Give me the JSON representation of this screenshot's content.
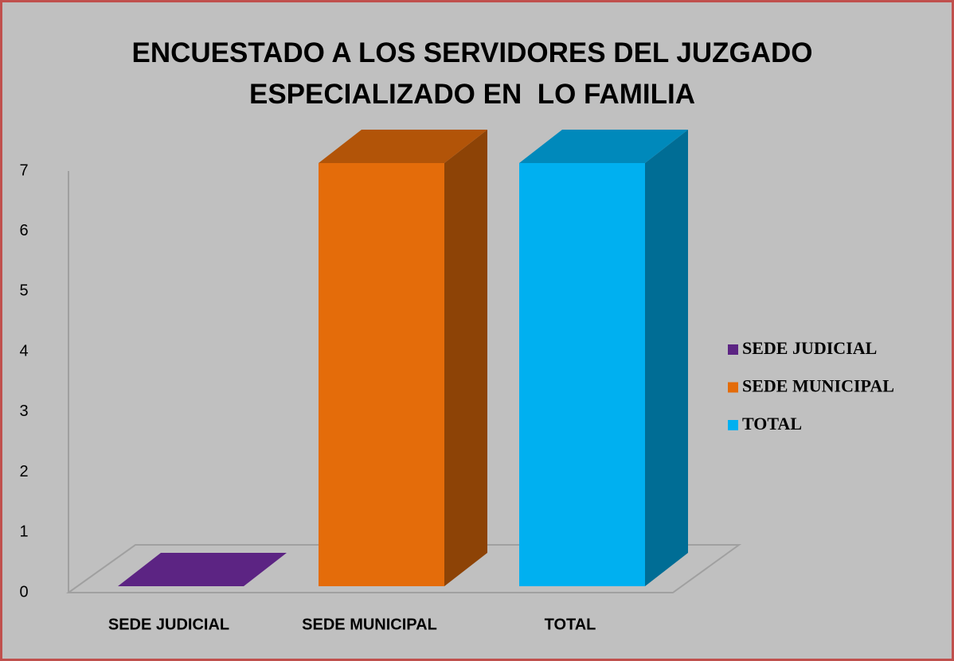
{
  "chart_data": {
    "type": "bar3d",
    "title": "ENCUESTADO A LOS SERVIDORES DEL JUZGADO ESPECIALIZADO EN  LO FAMILIA",
    "categories": [
      "SEDE JUDICIAL",
      "SEDE MUNICIPAL",
      "TOTAL"
    ],
    "values": [
      0,
      7,
      7
    ],
    "colors": [
      "#5c2483",
      "#e46c0a",
      "#00b0f0"
    ],
    "ylim": [
      0,
      7
    ],
    "yticks": [
      0,
      1,
      2,
      3,
      4,
      5,
      6,
      7
    ],
    "grid": false,
    "legend": "right"
  }
}
